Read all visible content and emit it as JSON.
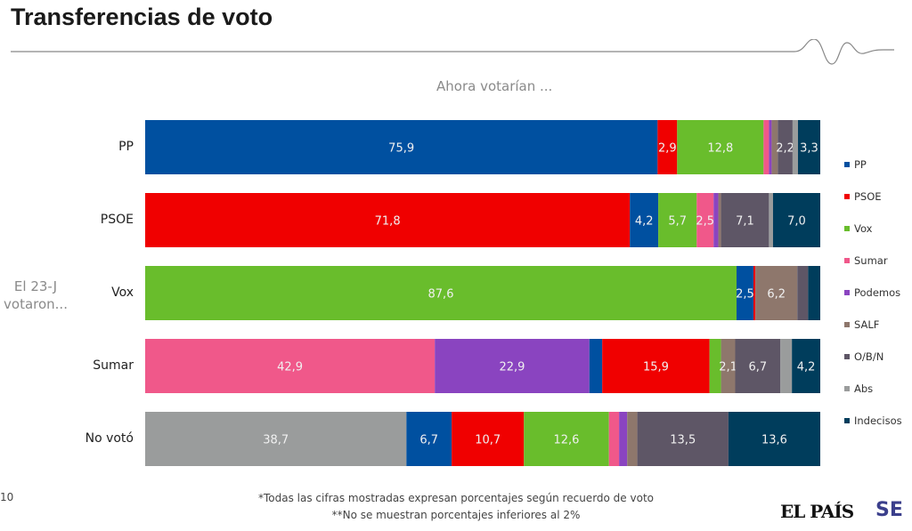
{
  "page_title": "Transferencias de voto",
  "page_number": "10",
  "notes": [
    "*Todas las cifras mostradas expresan porcentajes según recuerdo de voto",
    "**No se muestran porcentajes inferiores al 2%"
  ],
  "logos": {
    "elpais": "EL PAÍS",
    "se": "SE"
  },
  "chart_data": {
    "type": "bar",
    "orientation": "horizontal",
    "stacked": true,
    "title": "Ahora votarían ...",
    "ylabel": "El 23-J votaron...",
    "xlim": [
      0,
      100
    ],
    "grid": false,
    "legend_position": "right",
    "label_threshold": 2,
    "parties": [
      "PP",
      "PSOE",
      "Vox",
      "Sumar",
      "Podemos",
      "SALF",
      "O/B/N",
      "Abs",
      "Indecisos"
    ],
    "colors": {
      "PP": "#0050a0",
      "PSOE": "#f00000",
      "Vox": "#69bd2c",
      "Sumar": "#f0588a",
      "Podemos": "#8a44c0",
      "SALF": "#8e776c",
      "O/B/N": "#5e5666",
      "Abs": "#9a9c9c",
      "Indecisos": "#003d5c"
    },
    "rows": [
      {
        "label": "PP",
        "segments": [
          [
            "PP",
            75.9
          ],
          [
            "PSOE",
            2.9
          ],
          [
            "Vox",
            12.8
          ],
          [
            "Sumar",
            0.8
          ],
          [
            "Podemos",
            0.4
          ],
          [
            "SALF",
            0.9
          ],
          [
            "O/B/N",
            2.2
          ],
          [
            "Abs",
            0.8
          ],
          [
            "Indecisos",
            3.3
          ]
        ]
      },
      {
        "label": "PSOE",
        "segments": [
          [
            "PSOE",
            71.8
          ],
          [
            "PP",
            4.2
          ],
          [
            "Vox",
            5.7
          ],
          [
            "Sumar",
            2.5
          ],
          [
            "Podemos",
            0.7
          ],
          [
            "SALF",
            0.4
          ],
          [
            "O/B/N",
            7.1
          ],
          [
            "Abs",
            0.6
          ],
          [
            "Indecisos",
            7.0
          ]
        ]
      },
      {
        "label": "Vox",
        "segments": [
          [
            "Vox",
            87.6
          ],
          [
            "PP",
            2.5
          ],
          [
            "PSOE",
            0.3
          ],
          [
            "SALF",
            6.2
          ],
          [
            "O/B/N",
            1.6
          ],
          [
            "Indecisos",
            1.8
          ]
        ]
      },
      {
        "label": "Sumar",
        "segments": [
          [
            "Sumar",
            42.9
          ],
          [
            "Podemos",
            22.9
          ],
          [
            "PP",
            1.9
          ],
          [
            "PSOE",
            15.9
          ],
          [
            "Vox",
            1.7
          ],
          [
            "SALF",
            2.1
          ],
          [
            "O/B/N",
            6.7
          ],
          [
            "Abs",
            1.7
          ],
          [
            "Indecisos",
            4.2
          ]
        ]
      },
      {
        "label": "No votó",
        "segments": [
          [
            "Abs",
            38.7
          ],
          [
            "PP",
            6.7
          ],
          [
            "PSOE",
            10.7
          ],
          [
            "Vox",
            12.6
          ],
          [
            "Sumar",
            1.5
          ],
          [
            "Podemos",
            1.2
          ],
          [
            "SALF",
            1.5
          ],
          [
            "O/B/N",
            13.5
          ],
          [
            "Indecisos",
            13.6
          ]
        ]
      }
    ]
  }
}
